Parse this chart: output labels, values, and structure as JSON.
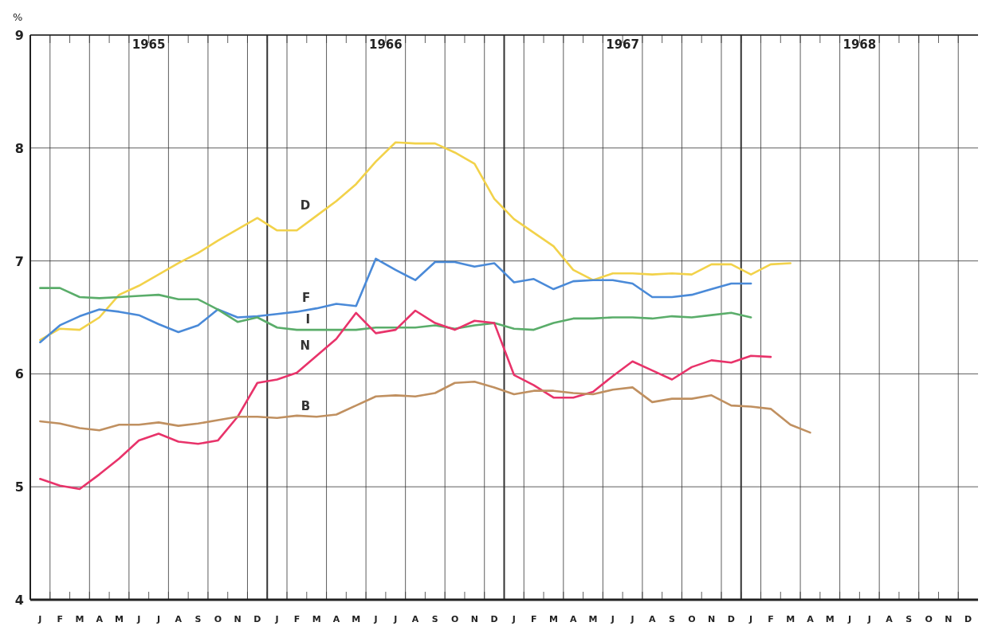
{
  "chart_data": {
    "type": "line",
    "ylabel": "%",
    "categories": [
      "J",
      "F",
      "M",
      "A",
      "M",
      "J",
      "J",
      "A",
      "S",
      "O",
      "N",
      "D",
      "J",
      "F",
      "M",
      "A",
      "M",
      "J",
      "J",
      "A",
      "S",
      "O",
      "N",
      "D",
      "J",
      "F",
      "M",
      "A",
      "M",
      "J",
      "J",
      "A",
      "S",
      "O",
      "N",
      "D",
      "J",
      "F",
      "M",
      "A",
      "M",
      "J",
      "J",
      "A",
      "S",
      "O",
      "N",
      "D"
    ],
    "annotations": [
      "1965",
      "1966",
      "1967",
      "1968"
    ],
    "ylim": [
      4,
      9
    ],
    "yticks": [
      4,
      5,
      6,
      7,
      8,
      9
    ],
    "grid": true,
    "marker": "none",
    "line_style": "solid",
    "series": [
      {
        "name": "D",
        "color": "#f2d24a",
        "values": [
          6.3,
          6.4,
          6.39,
          6.5,
          6.7,
          6.78,
          6.88,
          6.98,
          7.07,
          7.18,
          7.28,
          7.38,
          7.27,
          7.27,
          7.4,
          7.53,
          7.68,
          7.88,
          8.05,
          8.04,
          8.04,
          7.96,
          7.86,
          7.55,
          7.37,
          7.25,
          7.13,
          6.92,
          6.83,
          6.89,
          6.89,
          6.88,
          6.89,
          6.88,
          6.97,
          6.97,
          6.88,
          6.97,
          6.98,
          null,
          null,
          null,
          null,
          null,
          null,
          null,
          null,
          null
        ]
      },
      {
        "name": "F",
        "color": "#4a8ad8",
        "values": [
          6.28,
          6.43,
          6.51,
          6.57,
          6.55,
          6.52,
          6.44,
          6.37,
          6.43,
          6.57,
          6.5,
          6.51,
          6.53,
          6.55,
          6.58,
          6.62,
          6.6,
          7.02,
          6.92,
          6.83,
          6.99,
          6.99,
          6.95,
          6.98,
          6.81,
          6.84,
          6.75,
          6.82,
          6.83,
          6.83,
          6.8,
          6.68,
          6.68,
          6.7,
          6.75,
          6.8,
          6.8,
          null,
          null,
          null,
          null,
          null,
          null,
          null,
          null,
          null,
          null,
          null
        ]
      },
      {
        "name": "I",
        "color": "#5aad6a",
        "values": [
          6.76,
          6.76,
          6.68,
          6.67,
          6.68,
          6.69,
          6.7,
          6.66,
          6.66,
          6.57,
          6.46,
          6.5,
          6.41,
          6.39,
          6.39,
          6.39,
          6.39,
          6.41,
          6.41,
          6.41,
          6.43,
          6.4,
          6.43,
          6.45,
          6.4,
          6.39,
          6.45,
          6.49,
          6.49,
          6.5,
          6.5,
          6.49,
          6.51,
          6.5,
          6.52,
          6.54,
          6.5,
          null,
          null,
          null,
          null,
          null,
          null,
          null,
          null,
          null,
          null,
          null
        ]
      },
      {
        "name": "N",
        "color": "#e8336a",
        "values": [
          5.07,
          5.01,
          4.98,
          5.11,
          5.25,
          5.41,
          5.47,
          5.4,
          5.38,
          5.41,
          5.62,
          5.92,
          5.95,
          6.01,
          6.16,
          6.31,
          6.54,
          6.36,
          6.39,
          6.56,
          6.45,
          6.39,
          6.47,
          6.45,
          5.99,
          5.9,
          5.79,
          5.79,
          5.84,
          5.98,
          6.11,
          6.03,
          5.95,
          6.06,
          6.12,
          6.1,
          6.16,
          6.15,
          null,
          null,
          null,
          null,
          null,
          null,
          null,
          null,
          null,
          null
        ]
      },
      {
        "name": "B",
        "color": "#c09060",
        "values": [
          5.58,
          5.56,
          5.52,
          5.5,
          5.55,
          5.55,
          5.57,
          5.54,
          5.56,
          5.59,
          5.62,
          5.62,
          5.61,
          5.63,
          5.62,
          5.64,
          5.72,
          5.8,
          5.81,
          5.8,
          5.83,
          5.92,
          5.93,
          5.88,
          5.82,
          5.85,
          5.85,
          5.83,
          5.82,
          5.86,
          5.88,
          5.75,
          5.78,
          5.78,
          5.81,
          5.72,
          5.71,
          5.69,
          5.55,
          5.48,
          null,
          null,
          null,
          null,
          null,
          null,
          null,
          null
        ]
      }
    ]
  }
}
